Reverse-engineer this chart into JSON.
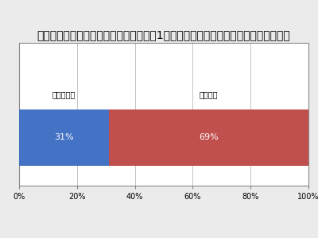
{
  "title": "電気自動車のカタログに掲載されている1回充電当たりの航続距離を知っていますか",
  "bar1_label": "知っている",
  "bar2_label": "知らない",
  "bar1_value": 31,
  "bar2_value": 69,
  "bar1_color": "#4472C4",
  "bar2_color": "#C0504D",
  "bar1_text": "31%",
  "bar2_text": "69%",
  "text_color": "#FFFFFF",
  "title_fontsize": 7.5,
  "label_fontsize": 7,
  "bar_text_fontsize": 8,
  "tick_fontsize": 7,
  "xlim": [
    0,
    100
  ],
  "xticks": [
    0,
    20,
    40,
    60,
    80,
    100
  ],
  "xtick_labels": [
    "0%",
    "20%",
    "40%",
    "60%",
    "80%",
    "100%"
  ],
  "bar_height": 0.45,
  "background_color": "#FFFFFF",
  "outer_bg": "#EBEBEB"
}
